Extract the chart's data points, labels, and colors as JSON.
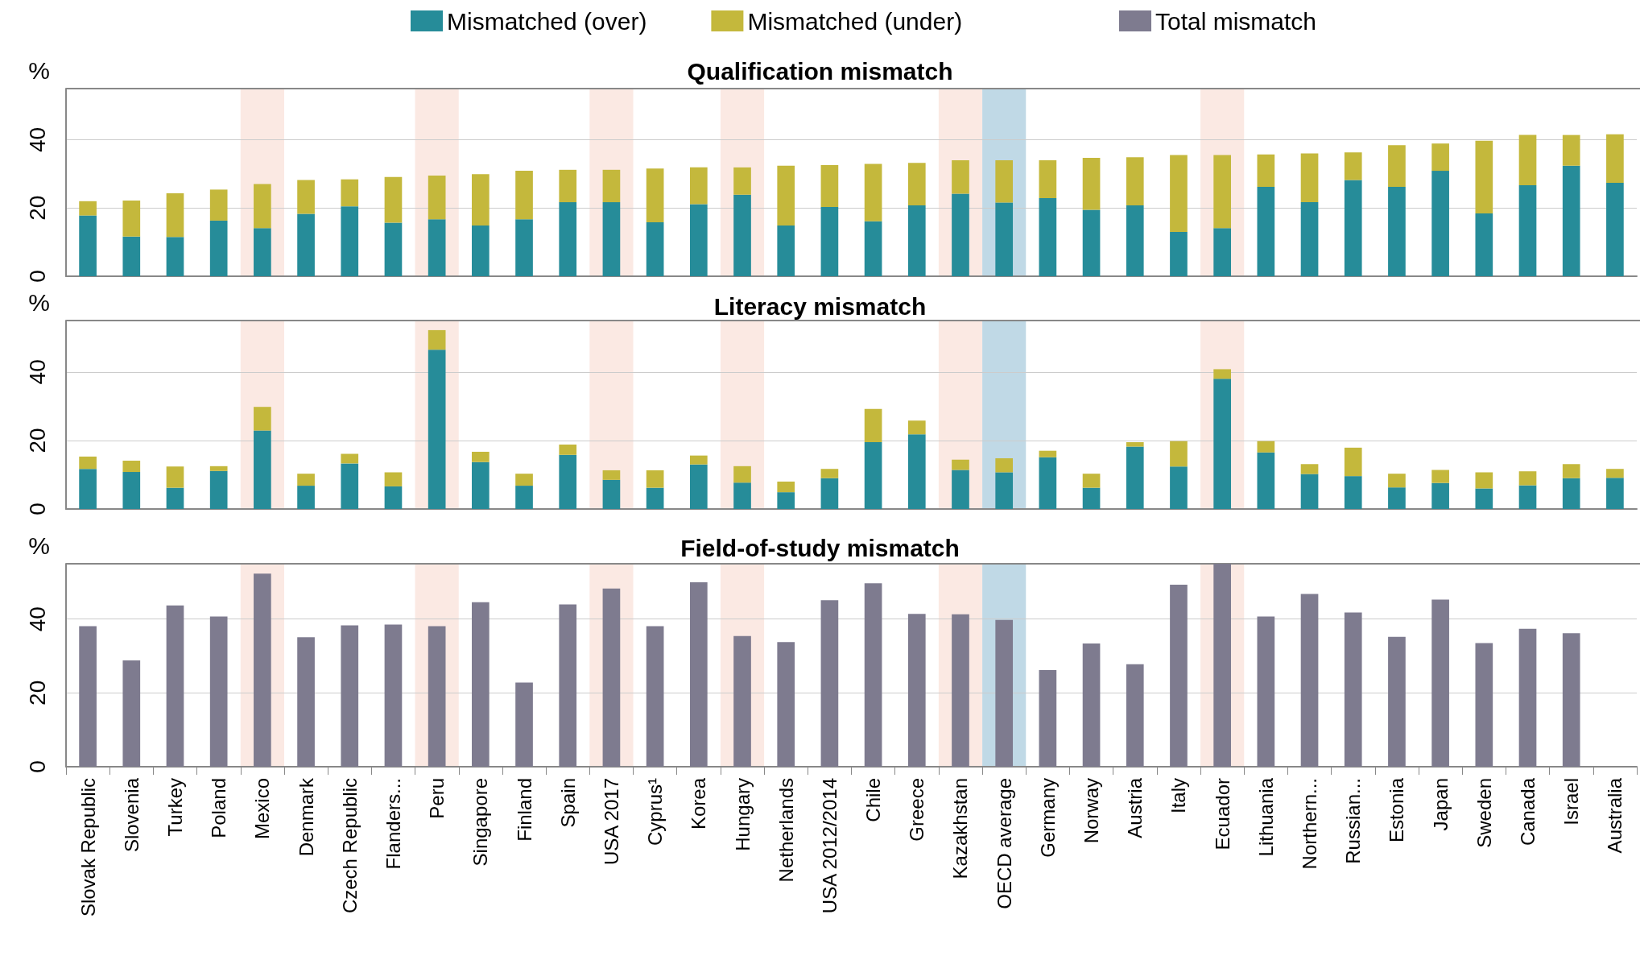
{
  "chart_data": [
    {
      "type": "bar",
      "title": "Qualification mismatch",
      "ylabel": "%",
      "stacked": true,
      "legend": "top",
      "grid": "y",
      "tick_labels": "y",
      "categories": [
        "Slovak Republic",
        "Slovenia",
        "Turkey",
        "Poland",
        "Mexico",
        "Denmark",
        "Czech Republic",
        "Flanders...",
        "Peru",
        "Singapore",
        "Finland",
        "Spain",
        "USA 2017",
        "Cyprus¹",
        "Korea",
        "Hungary",
        "Netherlands",
        "USA 2012/2014",
        "Chile",
        "Greece",
        "Kazakhstan",
        "OECD average",
        "Germany",
        "Norway",
        "Austria",
        "Italy",
        "Ecuador",
        "Lithuania",
        "Northern...",
        "Russian...",
        "Estonia",
        "Japan",
        "Sweden",
        "Canada",
        "Israel",
        "Australia"
      ],
      "ylim": [
        0,
        55
      ],
      "yticks": [
        0,
        20,
        40
      ],
      "series": [
        {
          "name": "Mismatched (over)",
          "color": "#268c99",
          "values": [
            17.8,
            11.6,
            11.5,
            16.3,
            14.1,
            18.3,
            20.5,
            15.7,
            16.7,
            14.9,
            16.7,
            21.7,
            21.7,
            15.8,
            21.1,
            23.9,
            14.9,
            20.3,
            16.1,
            20.8,
            24.2,
            21.6,
            22.9,
            19.5,
            20.8,
            13.0,
            14.1,
            26.2,
            21.7,
            28.2,
            26.2,
            30.9,
            18.4,
            26.7,
            32.4,
            27.4
          ]
        },
        {
          "name": "Mismatched (under)",
          "color": "#c4b83c",
          "values": [
            4.2,
            10.6,
            12.8,
            9.1,
            12.9,
            9.9,
            7.9,
            13.4,
            12.8,
            15.0,
            14.2,
            9.5,
            9.5,
            15.8,
            10.8,
            8.0,
            17.5,
            12.3,
            16.8,
            12.4,
            9.8,
            12.4,
            11.1,
            15.2,
            14.1,
            22.5,
            21.4,
            9.5,
            14.3,
            8.1,
            12.2,
            8.0,
            21.3,
            14.7,
            9.0,
            14.2
          ]
        }
      ],
      "bands": [
        {
          "axis": "x",
          "from": "Mexico",
          "to": "Mexico",
          "color": "#fbe9e3"
        },
        {
          "axis": "x",
          "from": "Peru",
          "to": "Peru",
          "color": "#fbe9e3"
        },
        {
          "axis": "x",
          "from": "USA 2017",
          "to": "USA 2017",
          "color": "#fbe9e3"
        },
        {
          "axis": "x",
          "from": "Hungary",
          "to": "Hungary",
          "color": "#fbe9e3"
        },
        {
          "axis": "x",
          "from": "Kazakhstan",
          "to": "Kazakhstan",
          "color": "#fbe9e3"
        },
        {
          "axis": "x",
          "from": "OECD average",
          "to": "OECD average",
          "color": "#c0d9e6"
        },
        {
          "axis": "x",
          "from": "Ecuador",
          "to": "Ecuador",
          "color": "#fbe9e3"
        }
      ]
    },
    {
      "type": "bar",
      "title": "Literacy mismatch",
      "ylabel": "%",
      "stacked": true,
      "grid": "y",
      "tick_labels": "y",
      "categories": [
        "Slovak Republic",
        "Slovenia",
        "Turkey",
        "Poland",
        "Mexico",
        "Denmark",
        "Czech Republic",
        "Flanders...",
        "Peru",
        "Singapore",
        "Finland",
        "Spain",
        "USA 2017",
        "Cyprus¹",
        "Korea",
        "Hungary",
        "Netherlands",
        "USA 2012/2014",
        "Chile",
        "Greece",
        "Kazakhstan",
        "OECD average",
        "Germany",
        "Norway",
        "Austria",
        "Italy",
        "Ecuador",
        "Lithuania",
        "Northern...",
        "Russian...",
        "Estonia",
        "Japan",
        "Sweden",
        "Canada",
        "Israel",
        "Australia"
      ],
      "ylim": [
        0,
        55
      ],
      "yticks": [
        0,
        20,
        40
      ],
      "series": [
        {
          "color": "#268c99",
          "values": [
            11.7,
            10.8,
            6.2,
            11.1,
            22.9,
            6.8,
            13.3,
            6.6,
            46.5,
            13.7,
            6.8,
            15.8,
            8.5,
            6.2,
            13.0,
            7.7,
            4.9,
            9.0,
            19.5,
            21.8,
            11.4,
            10.7,
            15.1,
            6.2,
            18.2,
            12.4,
            38.0,
            16.5,
            10.2,
            9.6,
            6.3,
            7.6,
            6.0,
            6.9,
            9.0,
            9.1
          ]
        },
        {
          "color": "#c4b83c",
          "values": [
            3.6,
            3.3,
            6.2,
            1.4,
            6.9,
            3.5,
            2.8,
            4.1,
            5.7,
            3.0,
            3.5,
            3.0,
            2.8,
            5.1,
            2.6,
            4.8,
            3.1,
            2.7,
            9.7,
            4.0,
            3.0,
            4.1,
            1.9,
            4.1,
            1.3,
            7.4,
            2.8,
            3.3,
            2.9,
            8.3,
            4.0,
            3.8,
            4.7,
            4.1,
            4.1,
            2.6
          ]
        }
      ],
      "bands": [
        {
          "axis": "x",
          "from": "Mexico",
          "to": "Mexico",
          "color": "#fbe9e3"
        },
        {
          "axis": "x",
          "from": "Peru",
          "to": "Peru",
          "color": "#fbe9e3"
        },
        {
          "axis": "x",
          "from": "USA 2017",
          "to": "USA 2017",
          "color": "#fbe9e3"
        },
        {
          "axis": "x",
          "from": "Hungary",
          "to": "Hungary",
          "color": "#fbe9e3"
        },
        {
          "axis": "x",
          "from": "Kazakhstan",
          "to": "Kazakhstan",
          "color": "#fbe9e3"
        },
        {
          "axis": "x",
          "from": "OECD average",
          "to": "OECD average",
          "color": "#c0d9e6"
        },
        {
          "axis": "x",
          "from": "Ecuador",
          "to": "Ecuador",
          "color": "#fbe9e3"
        }
      ]
    },
    {
      "type": "bar",
      "title": "Field-of-study mismatch",
      "ylabel": "%",
      "legend": "top",
      "grid": "y",
      "categories": [
        "Slovak Republic",
        "Slovenia",
        "Turkey",
        "Poland",
        "Mexico",
        "Denmark",
        "Czech Republic",
        "Flanders...",
        "Peru",
        "Singapore",
        "Finland",
        "Spain",
        "USA 2017",
        "Cyprus¹",
        "Korea",
        "Hungary",
        "Netherlands",
        "USA 2012/2014",
        "Chile",
        "Greece",
        "Kazakhstan",
        "OECD average",
        "Germany",
        "Norway",
        "Austria",
        "Italy",
        "Ecuador",
        "Lithuania",
        "Northern...",
        "Russian...",
        "Estonia",
        "Japan",
        "Sweden",
        "Canada",
        "Israel",
        "Australia"
      ],
      "ylim": [
        0,
        55
      ],
      "yticks": [
        0,
        20,
        40
      ],
      "series": [
        {
          "name": "Total mismatch",
          "color": "#7e7b8f",
          "values": [
            38.1,
            28.8,
            43.7,
            40.7,
            52.3,
            35.1,
            38.3,
            38.5,
            38.1,
            44.6,
            22.8,
            44.0,
            48.3,
            38.1,
            50.0,
            35.4,
            33.8,
            45.1,
            49.7,
            41.4,
            41.3,
            39.8,
            26.2,
            33.4,
            27.8,
            49.3,
            55.0,
            40.7,
            46.8,
            41.8,
            35.2,
            45.3,
            33.5,
            37.4,
            36.2,
            null
          ]
        }
      ],
      "bands": [
        {
          "axis": "x",
          "from": "Mexico",
          "to": "Mexico",
          "color": "#fbe9e3"
        },
        {
          "axis": "x",
          "from": "Peru",
          "to": "Peru",
          "color": "#fbe9e3"
        },
        {
          "axis": "x",
          "from": "USA 2017",
          "to": "USA 2017",
          "color": "#fbe9e3"
        },
        {
          "axis": "x",
          "from": "Hungary",
          "to": "Hungary",
          "color": "#fbe9e3"
        },
        {
          "axis": "x",
          "from": "Kazakhstan",
          "to": "Kazakhstan",
          "color": "#fbe9e3"
        },
        {
          "axis": "x",
          "from": "OECD average",
          "to": "OECD average",
          "color": "#c0d9e6"
        },
        {
          "axis": "x",
          "from": "Ecuador",
          "to": "Ecuador",
          "color": "#fbe9e3"
        }
      ]
    }
  ]
}
